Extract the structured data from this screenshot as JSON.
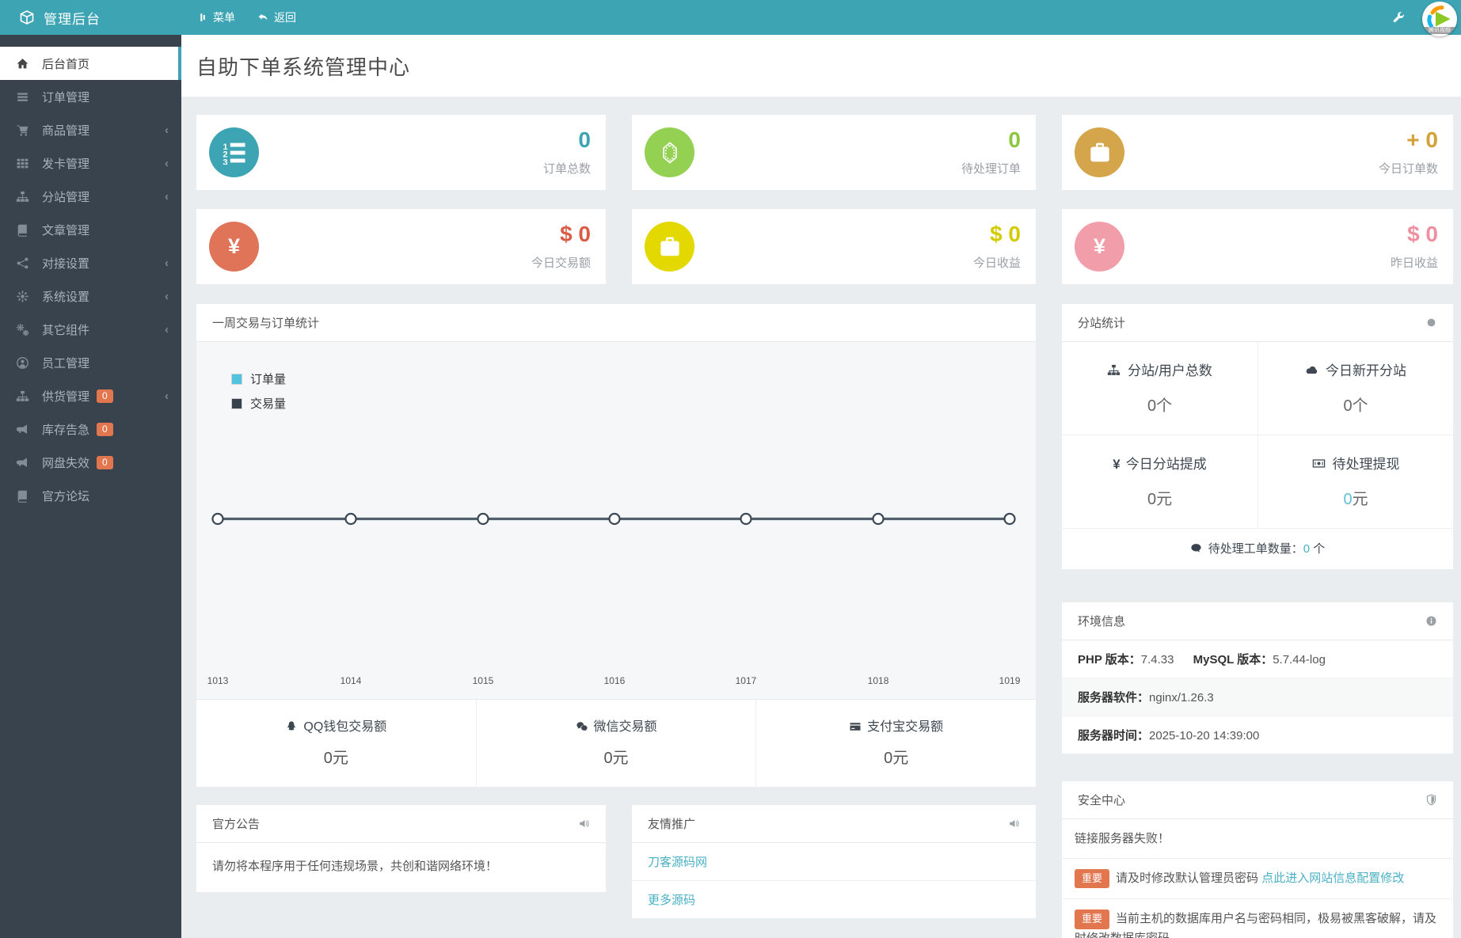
{
  "colors": {
    "topbar": "#3da4b4",
    "sidebar": "#39434d",
    "accent": "#3da4b4",
    "badge": "#e2764f",
    "link": "#4ab1c5",
    "legend_orders": "#4fc4dc",
    "legend_trades": "#37424e"
  },
  "topbar": {
    "brand": "管理后台",
    "menu_label": "菜单",
    "back_label": "返回",
    "logo_text": "腾讯视频",
    "icons": {
      "brand": "cube",
      "menu": "bars-vertical",
      "back": "reply",
      "wrench": "wrench"
    }
  },
  "sidebar": {
    "items": [
      {
        "icon": "home",
        "label": "后台首页",
        "active": true
      },
      {
        "icon": "list",
        "label": "订单管理"
      },
      {
        "icon": "cart",
        "label": "商品管理",
        "chevron": "chevron-left"
      },
      {
        "icon": "grid",
        "label": "发卡管理",
        "chevron": "chevron-left"
      },
      {
        "icon": "sitemap",
        "label": "分站管理",
        "chevron": "chevron-left"
      },
      {
        "icon": "book",
        "label": "文章管理"
      },
      {
        "icon": "share",
        "label": "对接设置",
        "chevron": "chevron-left"
      },
      {
        "icon": "gear",
        "label": "系统设置",
        "chevron": "chevron-left"
      },
      {
        "icon": "gears",
        "label": "其它组件",
        "chevron": "chevron-left"
      },
      {
        "icon": "user-circle",
        "label": "员工管理"
      },
      {
        "icon": "sitemap",
        "label": "供货管理",
        "badge": "0",
        "chevron": "chevron-left"
      },
      {
        "icon": "bullhorn",
        "label": "库存告急",
        "badge": "0"
      },
      {
        "icon": "bullhorn",
        "label": "网盘失效",
        "badge": "0"
      },
      {
        "icon": "book",
        "label": "官方论坛"
      }
    ]
  },
  "page": {
    "title": "自助下单系统管理中心"
  },
  "stat_cards": [
    {
      "icon": "list-ol",
      "circle_color": "#3da4b4",
      "value": "0",
      "value_color": "#3da4b4",
      "label": "订单总数"
    },
    {
      "icon": "gem",
      "circle_color": "#94d153",
      "value": "0",
      "value_color": "#8dc63f",
      "label": "待处理订单"
    },
    {
      "icon": "briefcase",
      "circle_color": "#d5a54b",
      "value": "+ 0",
      "value_color": "#d5a035",
      "label": "今日订单数"
    },
    {
      "icon": "yen",
      "circle_color": "#df7458",
      "value": "$ 0",
      "value_color": "#da5c47",
      "label": "今日交易额"
    },
    {
      "icon": "briefcase",
      "circle_color": "#e3d800",
      "value": "$ 0",
      "value_color": "#d3cb00",
      "label": "今日收益"
    },
    {
      "icon": "yen",
      "circle_color": "#f29daa",
      "value": "$ 0",
      "value_color": "#ef8fa0",
      "label": "昨日收益"
    }
  ],
  "chart_panel": {
    "title": "一周交易与订单统计"
  },
  "chart_data": {
    "type": "line",
    "title": "一周交易与订单统计",
    "x": [
      "1013",
      "1014",
      "1015",
      "1016",
      "1017",
      "1018",
      "1019"
    ],
    "series": [
      {
        "name": "订单量",
        "color": "#4fc4dc",
        "values": [
          0,
          0,
          0,
          0,
          0,
          0,
          0
        ]
      },
      {
        "name": "交易量",
        "color": "#37424e",
        "values": [
          0,
          0,
          0,
          0,
          0,
          0,
          0
        ]
      }
    ],
    "legend_position": "top-left",
    "grid": false
  },
  "pay_stats": [
    {
      "icon": "qq",
      "label": "QQ钱包交易额",
      "value": "0元"
    },
    {
      "icon": "wechat",
      "label": "微信交易额",
      "value": "0元"
    },
    {
      "icon": "credit-card",
      "label": "支付宝交易额",
      "value": "0元"
    }
  ],
  "announcement": {
    "title": "官方公告",
    "icon": "speaker",
    "body": "请勿将本程序用于任何违规场景，共创和谐网络环境！"
  },
  "promo": {
    "title": "友情推广",
    "icon": "speaker",
    "links": [
      {
        "label": "刀客源码网"
      },
      {
        "label": "更多源码"
      }
    ]
  },
  "substation": {
    "title": "分站统计",
    "icon": "circle",
    "cells": [
      {
        "icon": "sitemap",
        "label": "分站/用户总数",
        "value": "0",
        "unit": "个"
      },
      {
        "icon": "cloud",
        "label": "今日新开分站",
        "value": "0",
        "unit": "个"
      },
      {
        "icon": "yen",
        "label": "今日分站提成",
        "value": "0",
        "unit": "元"
      },
      {
        "icon": "money-bill",
        "label": "待处理提现",
        "value": "0",
        "unit": "元",
        "value_color": "#62c0d4"
      }
    ],
    "footer": {
      "icon": "comment",
      "label": "待处理工单数量：",
      "value": "0",
      "unit": " 个"
    }
  },
  "environment": {
    "title": "环境信息",
    "icon": "info",
    "rows": [
      {
        "pairs": [
          {
            "label": "PHP 版本：",
            "value": "7.4.33"
          },
          {
            "label": "MySQL 版本：",
            "value": "5.7.44-log"
          }
        ]
      },
      {
        "pairs": [
          {
            "label": "服务器软件：",
            "value": "nginx/1.26.3"
          }
        ],
        "striped": true
      },
      {
        "pairs": [
          {
            "label": "服务器时间：",
            "value": "2025-10-20 14:39:00"
          }
        ]
      }
    ]
  },
  "security": {
    "title": "安全中心",
    "icon": "shield",
    "rows": [
      {
        "text": "链接服务器失败！"
      },
      {
        "badge": "重要",
        "text": "请及时修改默认管理员密码 ",
        "link": "点此进入网站信息配置修改"
      },
      {
        "badge": "重要",
        "text": "当前主机的数据库用户名与密码相同，极易被黑客破解，请及时修改数据库密码"
      }
    ]
  }
}
